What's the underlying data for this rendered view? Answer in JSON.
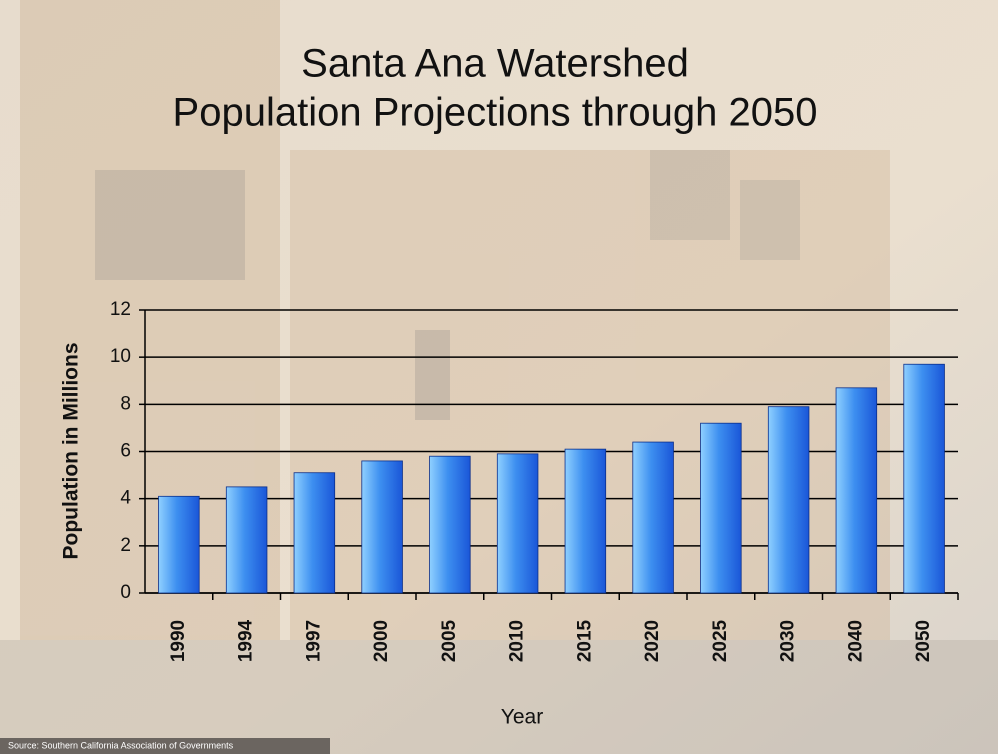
{
  "chart_data": {
    "type": "bar",
    "title": "Santa Ana Watershed",
    "subtitle": "Population Projections through 2050",
    "y_label": "Population in Millions",
    "x_label": "Year",
    "source": "Source: Southern California Association of Governments",
    "categories": [
      "1990",
      "1994",
      "1997",
      "2000",
      "2005",
      "2010",
      "2015",
      "2020",
      "2025",
      "2030",
      "2040",
      "2050"
    ],
    "values": [
      4.1,
      4.5,
      5.1,
      5.6,
      5.8,
      5.9,
      6.1,
      6.4,
      7.2,
      7.9,
      8.7,
      9.7
    ],
    "color": "#1a56d8",
    "ylim": [
      0,
      12
    ],
    "yticks": [
      0,
      2,
      4,
      6,
      8,
      10,
      12
    ],
    "grid": true
  }
}
